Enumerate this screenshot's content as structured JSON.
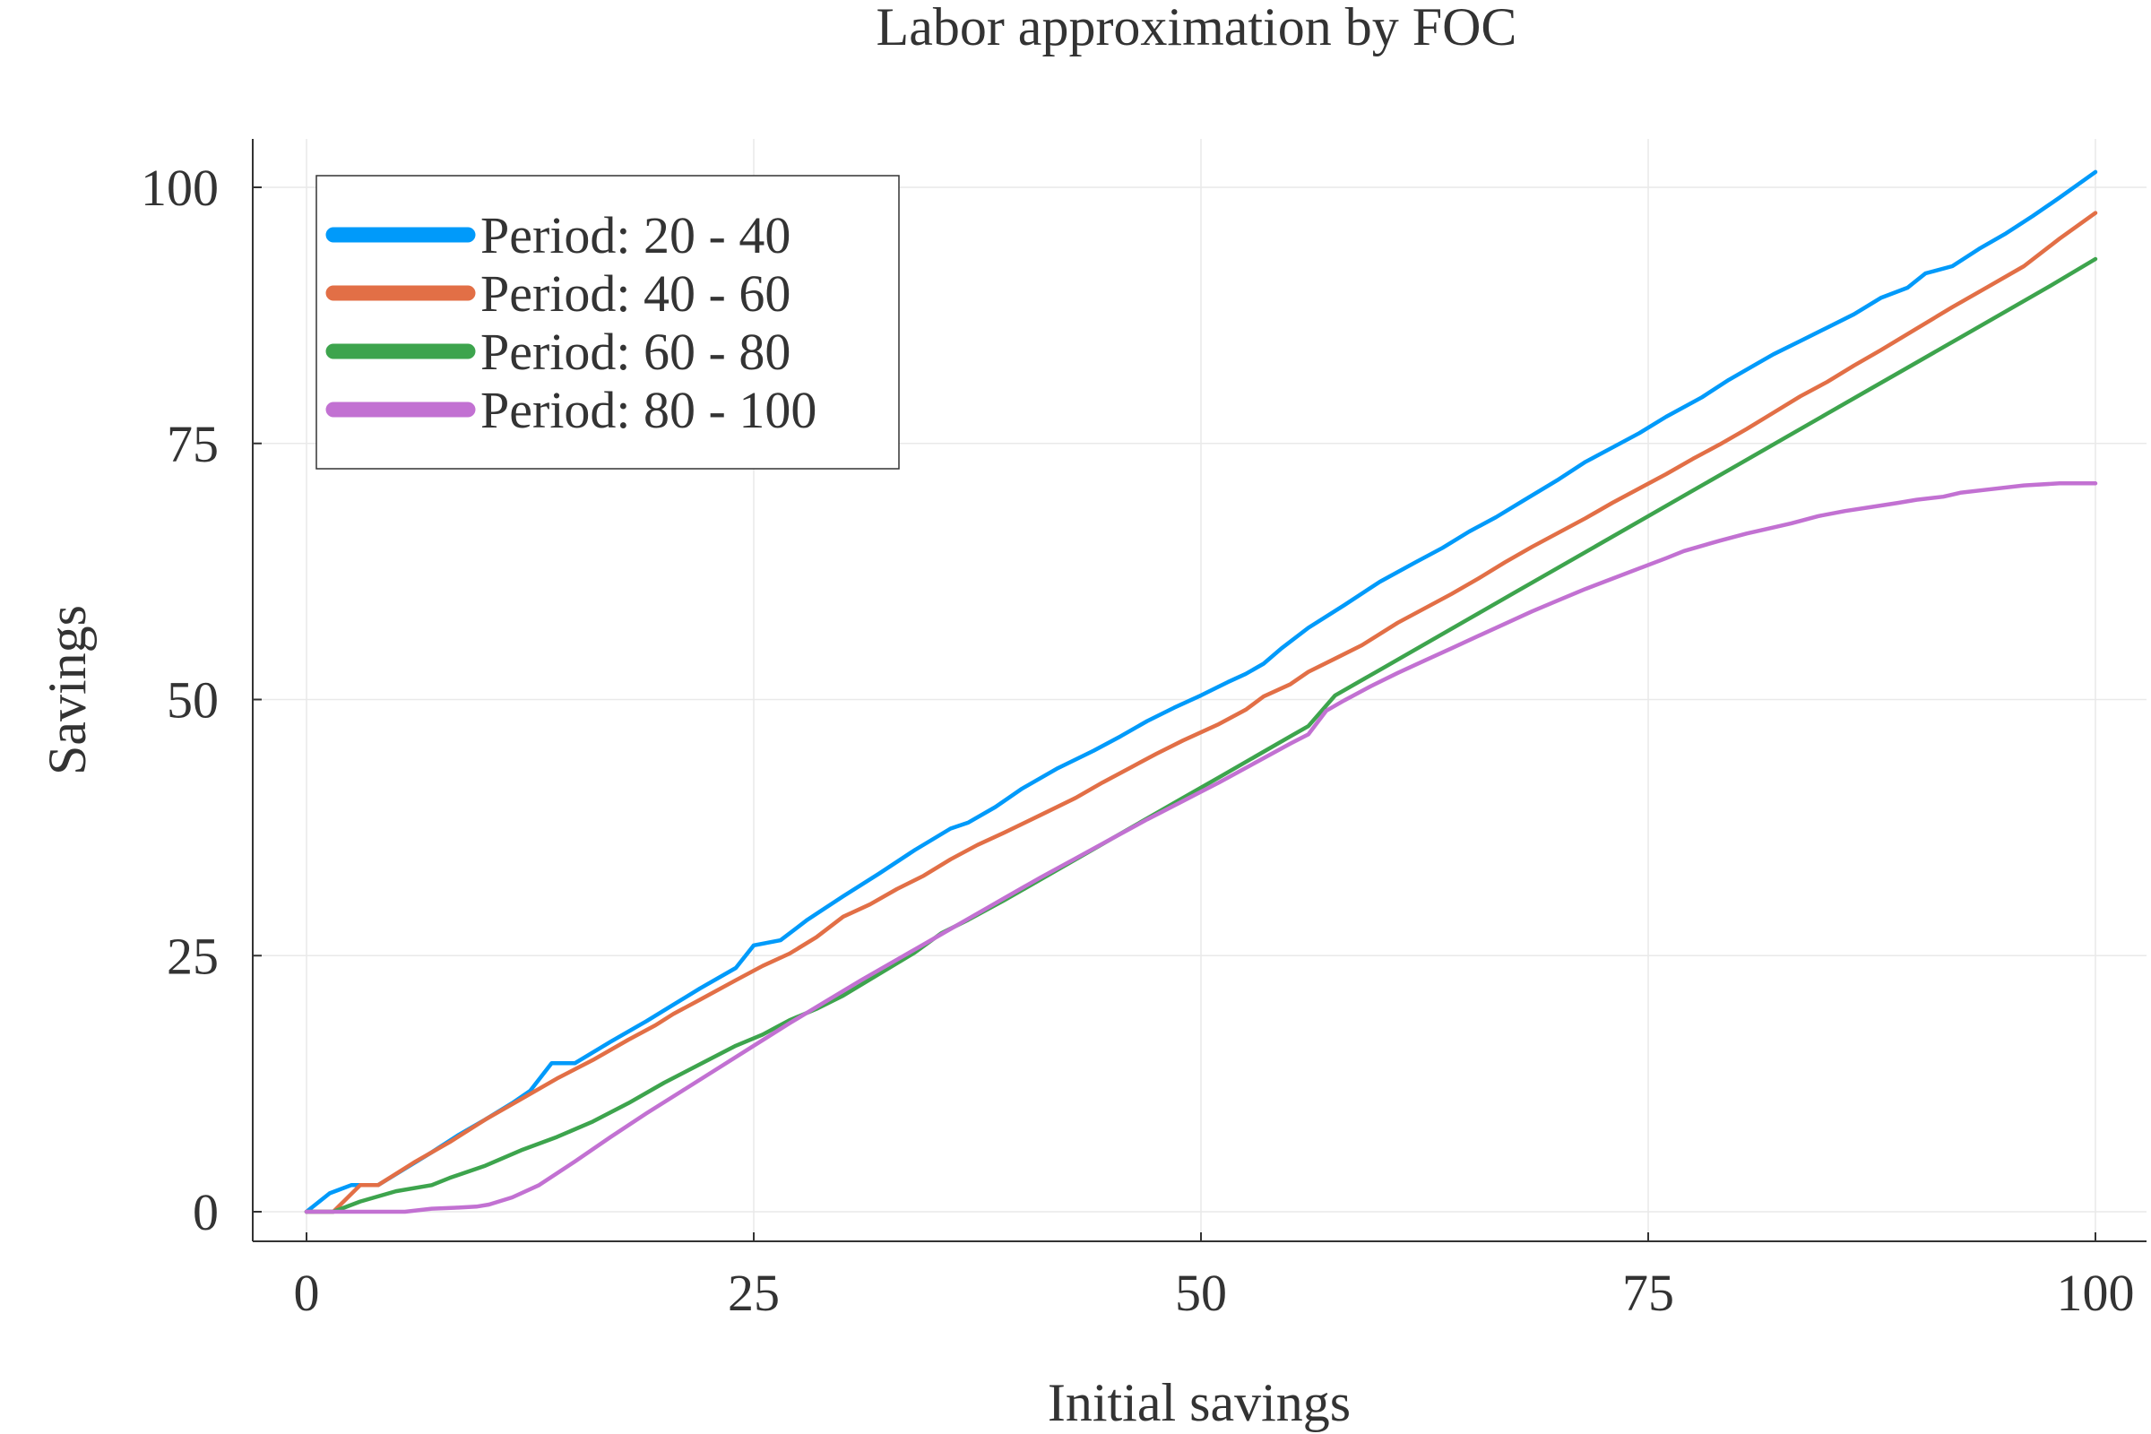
{
  "chart_data": {
    "type": "line",
    "title": "Labor approximation by FOC",
    "xlabel": "Initial savings",
    "ylabel": "Savings",
    "xlim": [
      -3,
      103
    ],
    "ylim": [
      -3,
      105
    ],
    "xticks": [
      0,
      25,
      50,
      75,
      100
    ],
    "yticks": [
      0,
      25,
      50,
      75,
      100
    ],
    "xtick_labels": [
      "0",
      "25",
      "50",
      "75",
      "100"
    ],
    "ytick_labels": [
      "0",
      "25",
      "50",
      "75",
      "100"
    ],
    "grid": true,
    "legend_position": "top-left",
    "series": [
      {
        "name": "Period: 20 - 40",
        "color": "#009AFA",
        "x": [
          0,
          1.3,
          2.5,
          4,
          5.5,
          7,
          8.5,
          10,
          11.5,
          12.5,
          13.7,
          15,
          17,
          19,
          20.5,
          22,
          24,
          25,
          26.5,
          28,
          30,
          32,
          34,
          36,
          37,
          38.5,
          40,
          42,
          44,
          45.5,
          47,
          48.5,
          50,
          51.5,
          52.5,
          53.5,
          54.5,
          56,
          58,
          60,
          62,
          63.5,
          65,
          66.5,
          68,
          70,
          71.5,
          73,
          74.5,
          76,
          78,
          79.5,
          81,
          82,
          83.5,
          85,
          86.5,
          88,
          89.5,
          90.5,
          92,
          93.5,
          95,
          96.5,
          98,
          100
        ],
        "y": [
          0,
          1.8,
          2.6,
          2.6,
          4.2,
          5.8,
          7.5,
          9.0,
          10.6,
          11.8,
          14.5,
          14.5,
          16.6,
          18.6,
          20.2,
          21.8,
          23.8,
          26.0,
          26.5,
          28.5,
          30.8,
          33.0,
          35.3,
          37.4,
          38.0,
          39.5,
          41.3,
          43.3,
          45.0,
          46.4,
          47.9,
          49.2,
          50.4,
          51.7,
          52.5,
          53.5,
          55.0,
          57.0,
          59.2,
          61.5,
          63.4,
          64.8,
          66.4,
          67.8,
          69.4,
          71.5,
          73.2,
          74.6,
          76.0,
          77.6,
          79.5,
          81.2,
          82.7,
          83.7,
          85.0,
          86.3,
          87.6,
          89.2,
          90.2,
          91.6,
          92.3,
          94.0,
          95.5,
          97.2,
          99.0,
          101.5
        ]
      },
      {
        "name": "Period: 40 - 60",
        "color": "#E26F46",
        "x": [
          0,
          1.5,
          3,
          4,
          6,
          8,
          10,
          12,
          14,
          16,
          18,
          19.5,
          20.5,
          22,
          24,
          25.5,
          27,
          28.5,
          30,
          31.5,
          33,
          34.5,
          36,
          37.5,
          39,
          41,
          43,
          44.5,
          46,
          47.5,
          49,
          51,
          52.5,
          53.5,
          55,
          56,
          57.5,
          59,
          61,
          62.5,
          64,
          65.5,
          67,
          68.5,
          70,
          71.5,
          73,
          74.5,
          76,
          77.5,
          79,
          80.5,
          82,
          83.5,
          85,
          86.5,
          88,
          90,
          92,
          94,
          96,
          98,
          100
        ],
        "y": [
          0,
          0,
          2.6,
          2.6,
          4.8,
          6.8,
          9.0,
          11.0,
          13.0,
          14.8,
          16.8,
          18.2,
          19.3,
          20.7,
          22.6,
          24.0,
          25.2,
          26.8,
          28.8,
          30.0,
          31.5,
          32.8,
          34.4,
          35.8,
          37.0,
          38.7,
          40.4,
          41.9,
          43.3,
          44.7,
          46.0,
          47.6,
          49.0,
          50.3,
          51.5,
          52.7,
          54.0,
          55.3,
          57.5,
          58.9,
          60.3,
          61.8,
          63.4,
          64.9,
          66.3,
          67.7,
          69.2,
          70.6,
          72.0,
          73.5,
          74.9,
          76.4,
          78.0,
          79.6,
          81.0,
          82.6,
          84.1,
          86.2,
          88.3,
          90.3,
          92.3,
          95.0,
          97.5
        ]
      },
      {
        "name": "Period: 60 - 80",
        "color": "#3DA44D",
        "x": [
          0,
          1.5,
          3,
          5,
          7,
          8,
          10,
          12,
          14,
          16,
          18,
          20,
          22,
          24,
          25.5,
          27,
          28.5,
          30,
          32,
          34,
          35.5,
          37,
          39,
          41,
          43,
          45,
          47,
          49,
          51,
          53,
          55,
          56,
          57.5,
          60,
          62.5,
          65,
          67.5,
          70,
          72.5,
          75,
          77.5,
          80,
          82.5,
          85,
          87.5,
          90,
          92.5,
          95,
          97.5,
          100
        ],
        "y": [
          0,
          0,
          1.0,
          2.0,
          2.6,
          3.3,
          4.5,
          6.0,
          7.3,
          8.8,
          10.6,
          12.6,
          14.4,
          16.2,
          17.3,
          18.7,
          19.8,
          21.1,
          23.2,
          25.3,
          27.2,
          28.5,
          30.4,
          32.4,
          34.4,
          36.4,
          38.4,
          40.4,
          42.4,
          44.4,
          46.4,
          47.4,
          50.4,
          52.9,
          55.4,
          57.9,
          60.4,
          62.9,
          65.4,
          67.9,
          70.4,
          72.9,
          75.4,
          77.9,
          80.4,
          82.9,
          85.4,
          87.9,
          90.4,
          93.0
        ]
      },
      {
        "name": "Period: 80 - 100",
        "color": "#C271D2",
        "x": [
          0,
          2,
          4,
          5.5,
          7,
          8.5,
          9.5,
          10.2,
          11.5,
          13,
          15,
          17,
          19,
          21,
          23,
          25,
          27,
          29,
          31,
          33,
          35,
          37,
          39,
          41,
          43,
          45,
          47,
          49,
          51,
          53,
          55,
          56,
          57,
          58,
          59.5,
          61,
          62.5,
          64,
          65.5,
          67,
          68.5,
          70,
          71.5,
          73,
          74.5,
          76,
          77,
          79,
          80.5,
          81.5,
          83,
          84.5,
          86,
          87.5,
          89,
          90,
          91.5,
          92.5,
          94,
          96,
          98,
          100
        ],
        "y": [
          0,
          0,
          0,
          0,
          0.3,
          0.4,
          0.5,
          0.7,
          1.4,
          2.6,
          4.9,
          7.3,
          9.6,
          11.8,
          14.0,
          16.2,
          18.4,
          20.5,
          22.6,
          24.6,
          26.6,
          28.6,
          30.6,
          32.6,
          34.5,
          36.4,
          38.3,
          40.1,
          41.9,
          43.8,
          45.7,
          46.6,
          48.9,
          49.9,
          51.3,
          52.6,
          53.8,
          55.0,
          56.2,
          57.4,
          58.6,
          59.7,
          60.8,
          61.8,
          62.8,
          63.8,
          64.5,
          65.5,
          66.2,
          66.6,
          67.2,
          67.9,
          68.4,
          68.8,
          69.2,
          69.5,
          69.8,
          70.2,
          70.5,
          70.9,
          71.1,
          71.1
        ]
      }
    ]
  }
}
